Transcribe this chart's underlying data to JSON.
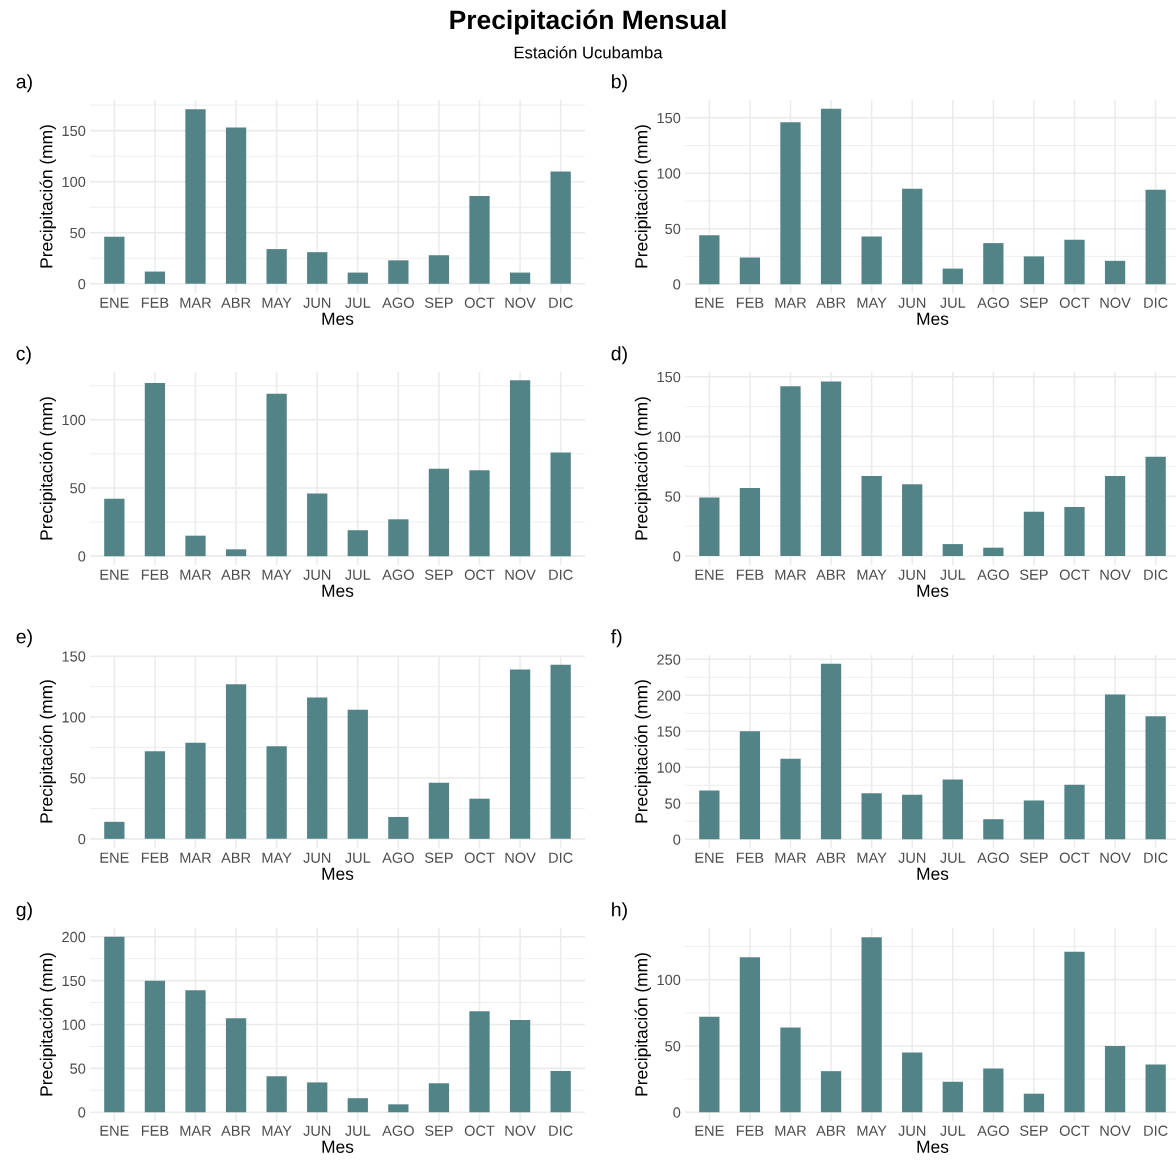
{
  "chart_data": [
    {
      "type": "bar",
      "title": "Precipitación Mensual",
      "subtitle": "Estación Ucubamba",
      "annotations": [
        "a)"
      ],
      "xlabel": "Mes",
      "ylabel": "Precipitación (mm)",
      "categories": [
        "ENE",
        "FEB",
        "MAR",
        "ABR",
        "MAY",
        "JUN",
        "JUL",
        "AGO",
        "SEP",
        "OCT",
        "NOV",
        "DIC"
      ],
      "color": "#528487",
      "values": [
        46,
        12,
        171,
        153,
        34,
        31,
        11,
        23,
        28,
        86,
        11,
        110
      ],
      "ylim": [
        -9,
        180
      ],
      "yticks": [
        0,
        50,
        100,
        150
      ],
      "grid": true,
      "legend": false
    },
    {
      "type": "bar",
      "annotations": [
        "b)"
      ],
      "xlabel": "Mes",
      "ylabel": "Precipitación (mm)",
      "categories": [
        "ENE",
        "FEB",
        "MAR",
        "ABR",
        "MAY",
        "JUN",
        "JUL",
        "AGO",
        "SEP",
        "OCT",
        "NOV",
        "DIC"
      ],
      "color": "#528487",
      "values": [
        44,
        24,
        146,
        158,
        43,
        86,
        14,
        37,
        25,
        40,
        21,
        85
      ],
      "ylim": [
        -8,
        166
      ],
      "yticks": [
        0,
        50,
        100,
        150
      ],
      "grid": true,
      "legend": false
    },
    {
      "type": "bar",
      "annotations": [
        "c)"
      ],
      "xlabel": "Mes",
      "ylabel": "Precipitación (mm)",
      "categories": [
        "ENE",
        "FEB",
        "MAR",
        "ABR",
        "MAY",
        "JUN",
        "JUL",
        "AGO",
        "SEP",
        "OCT",
        "NOV",
        "DIC"
      ],
      "color": "#528487",
      "values": [
        42,
        127,
        15,
        5,
        119,
        46,
        19,
        27,
        64,
        63,
        129,
        76
      ],
      "ylim": [
        -6.5,
        135
      ],
      "yticks": [
        0,
        50,
        100
      ],
      "grid": true,
      "legend": false
    },
    {
      "type": "bar",
      "annotations": [
        "d)"
      ],
      "xlabel": "Mes",
      "ylabel": "Precipitación (mm)",
      "categories": [
        "ENE",
        "FEB",
        "MAR",
        "ABR",
        "MAY",
        "JUN",
        "JUL",
        "AGO",
        "SEP",
        "OCT",
        "NOV",
        "DIC"
      ],
      "color": "#528487",
      "values": [
        49,
        57,
        142,
        146,
        67,
        60,
        10,
        7,
        37,
        41,
        67,
        83
      ],
      "ylim": [
        -7.5,
        154
      ],
      "yticks": [
        0,
        50,
        100,
        150
      ],
      "grid": true,
      "legend": false
    },
    {
      "type": "bar",
      "annotations": [
        "e)"
      ],
      "xlabel": "Mes",
      "ylabel": "Precipitación (mm)",
      "categories": [
        "ENE",
        "FEB",
        "MAR",
        "ABR",
        "MAY",
        "JUN",
        "JUL",
        "AGO",
        "SEP",
        "OCT",
        "NOV",
        "DIC"
      ],
      "color": "#528487",
      "values": [
        14,
        72,
        79,
        127,
        76,
        116,
        106,
        18,
        46,
        33,
        139,
        143
      ],
      "ylim": [
        -7.5,
        151
      ],
      "yticks": [
        0,
        50,
        100,
        150
      ],
      "grid": true,
      "legend": false
    },
    {
      "type": "bar",
      "annotations": [
        "f)"
      ],
      "xlabel": "Mes",
      "ylabel": "Precipitación (mm)",
      "categories": [
        "ENE",
        "FEB",
        "MAR",
        "ABR",
        "MAY",
        "JUN",
        "JUL",
        "AGO",
        "SEP",
        "OCT",
        "NOV",
        "DIC"
      ],
      "color": "#528487",
      "values": [
        68,
        150,
        112,
        244,
        64,
        62,
        83,
        28,
        54,
        76,
        201,
        171
      ],
      "ylim": [
        -12,
        256
      ],
      "yticks": [
        0,
        50,
        100,
        150,
        200,
        250
      ],
      "grid": true,
      "legend": false
    },
    {
      "type": "bar",
      "annotations": [
        "g)"
      ],
      "xlabel": "Mes",
      "ylabel": "Precipitación (mm)",
      "categories": [
        "ENE",
        "FEB",
        "MAR",
        "ABR",
        "MAY",
        "JUN",
        "JUL",
        "AGO",
        "SEP",
        "OCT",
        "NOV",
        "DIC"
      ],
      "color": "#528487",
      "values": [
        200,
        150,
        139,
        107,
        41,
        34,
        16,
        9,
        33,
        115,
        105,
        47
      ],
      "ylim": [
        -10,
        210
      ],
      "yticks": [
        0,
        50,
        100,
        150,
        200
      ],
      "grid": true,
      "legend": false
    },
    {
      "type": "bar",
      "annotations": [
        "h)"
      ],
      "xlabel": "Mes",
      "ylabel": "Precipitación (mm)",
      "categories": [
        "ENE",
        "FEB",
        "MAR",
        "ABR",
        "MAY",
        "JUN",
        "JUL",
        "AGO",
        "SEP",
        "OCT",
        "NOV",
        "DIC"
      ],
      "color": "#528487",
      "values": [
        72,
        117,
        64,
        31,
        132,
        45,
        23,
        33,
        14,
        121,
        50,
        36
      ],
      "ylim": [
        -6.6,
        139
      ],
      "yticks": [
        0,
        50,
        100
      ],
      "grid": true,
      "legend": false
    }
  ]
}
